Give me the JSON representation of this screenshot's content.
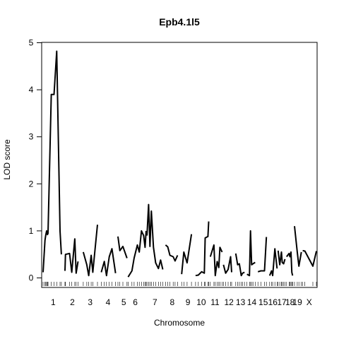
{
  "chart_data": {
    "type": "line",
    "title": "Epb4.1l5",
    "xlabel": "Chromosome",
    "ylabel": "LOD score",
    "ylim": [
      0,
      5
    ],
    "yticks": [
      0,
      1,
      2,
      3,
      4,
      5
    ],
    "grid": false,
    "legend": "none",
    "xlim": [
      0,
      1
    ],
    "chromosomes": [
      {
        "label": "1",
        "span": [
          0.0,
          0.074
        ],
        "points": [
          [
            0.0,
            0.12
          ],
          [
            0.007,
            0.8
          ],
          [
            0.01,
            0.92
          ],
          [
            0.013,
            1.0
          ],
          [
            0.016,
            0.92
          ],
          [
            0.018,
            0.95
          ],
          [
            0.03,
            3.9
          ],
          [
            0.04,
            3.9
          ],
          [
            0.05,
            4.82
          ],
          [
            0.062,
            1.0
          ],
          [
            0.067,
            0.5
          ]
        ]
      },
      {
        "label": "2",
        "span": [
          0.079,
          0.135
        ],
        "points": [
          [
            0.08,
            0.15
          ],
          [
            0.082,
            0.5
          ],
          [
            0.097,
            0.52
          ],
          [
            0.105,
            0.12
          ],
          [
            0.116,
            0.83
          ],
          [
            0.121,
            0.1
          ],
          [
            0.128,
            0.35
          ]
        ]
      },
      {
        "label": "3",
        "span": [
          0.14,
          0.205
        ],
        "points": [
          [
            0.147,
            0.55
          ],
          [
            0.16,
            0.28
          ],
          [
            0.167,
            0.05
          ],
          [
            0.176,
            0.48
          ],
          [
            0.182,
            0.12
          ],
          [
            0.199,
            1.13
          ]
        ]
      },
      {
        "label": "4",
        "span": [
          0.21,
          0.265
        ],
        "points": [
          [
            0.213,
            0.12
          ],
          [
            0.224,
            0.35
          ],
          [
            0.232,
            0.05
          ],
          [
            0.242,
            0.45
          ],
          [
            0.252,
            0.62
          ],
          [
            0.265,
            0.1
          ]
        ]
      },
      {
        "label": "5",
        "span": [
          0.27,
          0.32
        ],
        "points": [
          [
            0.274,
            0.88
          ],
          [
            0.281,
            0.58
          ],
          [
            0.292,
            0.67
          ],
          [
            0.307,
            0.42
          ]
        ]
      },
      {
        "label": "6",
        "span": [
          0.31,
          0.365
        ],
        "points": [
          [
            0.311,
            0.02
          ],
          [
            0.325,
            0.15
          ],
          [
            0.333,
            0.42
          ],
          [
            0.345,
            0.7
          ],
          [
            0.352,
            0.55
          ],
          [
            0.36,
            1.0
          ],
          [
            0.368,
            0.9
          ],
          [
            0.373,
            0.65
          ],
          [
            0.377,
            1.0
          ]
        ]
      },
      {
        "label": "7",
        "span": [
          0.378,
          0.44
        ],
        "points": [
          [
            0.38,
            0.9
          ],
          [
            0.386,
            1.56
          ],
          [
            0.391,
            0.67
          ],
          [
            0.396,
            1.42
          ],
          [
            0.404,
            0.65
          ],
          [
            0.412,
            0.32
          ],
          [
            0.422,
            0.2
          ],
          [
            0.43,
            0.38
          ],
          [
            0.438,
            0.18
          ]
        ]
      },
      {
        "label": "8",
        "span": [
          0.445,
          0.5
        ],
        "points": [
          [
            0.448,
            0.7
          ],
          [
            0.456,
            0.66
          ],
          [
            0.464,
            0.48
          ],
          [
            0.476,
            0.45
          ],
          [
            0.483,
            0.36
          ],
          [
            0.492,
            0.48
          ]
        ]
      },
      {
        "label": "9",
        "span": [
          0.505,
          0.555
        ],
        "points": [
          [
            0.507,
            0.08
          ],
          [
            0.515,
            0.55
          ],
          [
            0.527,
            0.32
          ],
          [
            0.543,
            0.93
          ]
        ]
      },
      {
        "label": "10",
        "span": [
          0.557,
          0.6
        ],
        "points": [
          [
            0.558,
            0.05
          ],
          [
            0.568,
            0.06
          ],
          [
            0.58,
            0.13
          ],
          [
            0.59,
            0.1
          ],
          [
            0.593,
            0.85
          ],
          [
            0.603,
            0.88
          ],
          [
            0.606,
            1.2
          ]
        ]
      },
      {
        "label": "11",
        "span": [
          0.608,
          0.65
        ],
        "points": [
          [
            0.612,
            0.45
          ],
          [
            0.625,
            0.7
          ],
          [
            0.63,
            0.05
          ],
          [
            0.637,
            0.35
          ],
          [
            0.643,
            0.22
          ],
          [
            0.647,
            0.65
          ],
          [
            0.655,
            0.55
          ]
        ]
      },
      {
        "label": "12",
        "span": [
          0.66,
          0.7
        ],
        "points": [
          [
            0.66,
            0.28
          ],
          [
            0.668,
            0.1
          ],
          [
            0.677,
            0.18
          ],
          [
            0.686,
            0.45
          ],
          [
            0.69,
            0.12
          ]
        ]
      },
      {
        "label": "13",
        "span": [
          0.705,
          0.74
        ],
        "points": [
          [
            0.705,
            0.52
          ],
          [
            0.712,
            0.28
          ],
          [
            0.718,
            0.3
          ],
          [
            0.725,
            0.05
          ],
          [
            0.73,
            0.1
          ],
          [
            0.737,
            0.12
          ]
        ]
      },
      {
        "label": "14",
        "span": [
          0.742,
          0.785
        ],
        "points": [
          [
            0.746,
            0.08
          ],
          [
            0.755,
            0.05
          ],
          [
            0.759,
            1.0
          ],
          [
            0.763,
            0.28
          ],
          [
            0.768,
            0.3
          ],
          [
            0.776,
            0.33
          ]
        ]
      },
      {
        "label": "15",
        "span": [
          0.786,
          0.825
        ],
        "points": [
          [
            0.786,
            0.13
          ],
          [
            0.797,
            0.15
          ],
          [
            0.81,
            0.15
          ],
          [
            0.817,
            0.87
          ]
        ]
      },
      {
        "label": "16",
        "span": [
          0.826,
          0.855
        ],
        "points": [
          [
            0.829,
            0.05
          ],
          [
            0.836,
            0.15
          ],
          [
            0.84,
            0.05
          ],
          [
            0.848,
            0.62
          ],
          [
            0.856,
            0.2
          ]
        ]
      },
      {
        "label": "17",
        "span": [
          0.857,
          0.89
        ],
        "points": [
          [
            0.86,
            0.58
          ],
          [
            0.866,
            0.28
          ],
          [
            0.872,
            0.55
          ],
          [
            0.875,
            0.33
          ],
          [
            0.88,
            0.3
          ],
          [
            0.885,
            0.4
          ]
        ]
      },
      {
        "label": "18",
        "span": [
          0.892,
          0.915
        ],
        "points": [
          [
            0.891,
            0.45
          ],
          [
            0.9,
            0.52
          ],
          [
            0.903,
            0.45
          ],
          [
            0.907,
            0.55
          ],
          [
            0.91,
            0.12
          ],
          [
            0.913,
            0.05
          ]
        ]
      },
      {
        "label": "19",
        "span": [
          0.916,
          0.945
        ],
        "points": [
          [
            0.92,
            1.1
          ],
          [
            0.93,
            0.55
          ],
          [
            0.936,
            0.25
          ],
          [
            0.945,
            0.55
          ]
        ]
      },
      {
        "label": "X",
        "span": [
          0.947,
          1.0
        ],
        "points": [
          [
            0.95,
            0.58
          ],
          [
            0.958,
            0.57
          ],
          [
            0.987,
            0.25
          ],
          [
            1.0,
            0.57
          ]
        ]
      }
    ]
  }
}
